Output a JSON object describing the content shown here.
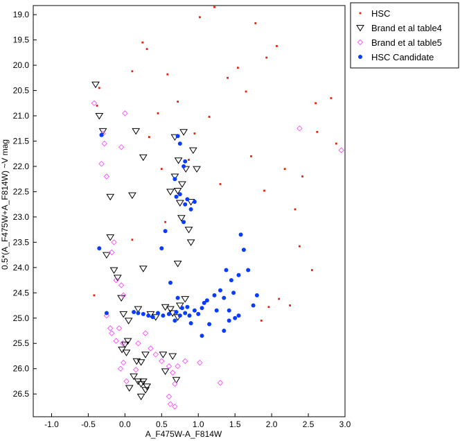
{
  "chart_data": {
    "type": "scatter",
    "title": "",
    "xlabel": "A_F475W-A_F814W",
    "ylabel": "0.5*(A_F475W+A_F814W) ~V mag",
    "xlim": [
      -1.25,
      3.0
    ],
    "ylim": [
      26.95,
      18.82
    ],
    "y_inverted": true,
    "grid": false,
    "legend_position": "top-right, outside plot",
    "xticks": [
      -1.0,
      -0.5,
      0.0,
      0.5,
      1.0,
      1.5,
      2.0,
      2.5,
      3.0
    ],
    "xtick_labels": [
      "-1.0",
      "-0.5",
      "0.0",
      "0.5",
      "1.0",
      "1.5",
      "2.0",
      "2.5",
      "3.0"
    ],
    "yticks": [
      19.0,
      19.5,
      20.0,
      20.5,
      21.0,
      21.5,
      22.0,
      22.5,
      23.0,
      23.5,
      24.0,
      24.5,
      25.0,
      25.5,
      26.0,
      26.5
    ],
    "ytick_labels": [
      "19.0",
      "19.5",
      "20.0",
      "20.5",
      "21.0",
      "21.5",
      "22.0",
      "22.5",
      "23.0",
      "23.5",
      "24.0",
      "24.5",
      "25.0",
      "25.5",
      "26.0",
      "26.5"
    ],
    "series": [
      {
        "name": "HSC",
        "marker": "small-square",
        "color": "#e8200c",
        "values": [
          [
            1.22,
            18.85
          ],
          [
            1.02,
            19.05
          ],
          [
            1.78,
            19.17
          ],
          [
            0.24,
            19.55
          ],
          [
            2.07,
            19.62
          ],
          [
            0.3,
            19.68
          ],
          [
            1.93,
            19.85
          ],
          [
            2.81,
            20.65
          ],
          [
            0.45,
            20.95
          ],
          [
            0.72,
            20.72
          ],
          [
            1.4,
            20.25
          ],
          [
            1.65,
            20.52
          ],
          [
            1.15,
            21.02
          ],
          [
            2.6,
            20.75
          ],
          [
            2.88,
            21.55
          ],
          [
            2.32,
            22.85
          ],
          [
            2.55,
            24.05
          ],
          [
            2.38,
            23.58
          ],
          [
            2.1,
            24.62
          ],
          [
            1.86,
            25.05
          ],
          [
            1.96,
            24.78
          ],
          [
            -0.42,
            24.55
          ],
          [
            0.33,
            21.42
          ],
          [
            0.87,
            21.87
          ],
          [
            -0.38,
            20.8
          ],
          [
            -0.35,
            20.45
          ],
          [
            1.3,
            22.35
          ],
          [
            1.72,
            21.8
          ],
          [
            2.18,
            22.05
          ],
          [
            0.1,
            20.12
          ],
          [
            0.58,
            20.18
          ],
          [
            1.54,
            20.05
          ],
          [
            2.62,
            21.32
          ],
          [
            2.25,
            24.75
          ],
          [
            0.55,
            23.1
          ],
          [
            0.5,
            22.05
          ],
          [
            1.9,
            22.48
          ],
          [
            2.42,
            22.2
          ],
          [
            0.1,
            23.45
          ],
          [
            0.95,
            21.35
          ]
        ]
      },
      {
        "name": "Brand et al table4",
        "marker": "open-triangle-down",
        "color": "#000000",
        "values": [
          [
            -0.4,
            20.38
          ],
          [
            -0.35,
            21.0
          ],
          [
            -0.3,
            21.3
          ],
          [
            0.15,
            21.3
          ],
          [
            0.25,
            21.82
          ],
          [
            -0.2,
            22.6
          ],
          [
            0.1,
            22.57
          ],
          [
            -0.2,
            23.4
          ],
          [
            -0.25,
            23.75
          ],
          [
            -0.15,
            24.05
          ],
          [
            -0.1,
            24.2
          ],
          [
            0.25,
            24.02
          ],
          [
            -0.05,
            24.6
          ],
          [
            -0.02,
            24.92
          ],
          [
            0.05,
            25.05
          ],
          [
            0.18,
            24.82
          ],
          [
            0.62,
            22.5
          ],
          [
            0.72,
            22.48
          ],
          [
            0.78,
            22.35
          ],
          [
            0.68,
            22.2
          ],
          [
            0.75,
            22.72
          ],
          [
            0.9,
            22.7
          ],
          [
            0.83,
            22.05
          ],
          [
            0.73,
            21.88
          ],
          [
            0.68,
            21.42
          ],
          [
            0.8,
            21.32
          ],
          [
            0.93,
            21.68
          ],
          [
            0.98,
            22.05
          ],
          [
            0.77,
            23.02
          ],
          [
            0.87,
            23.25
          ],
          [
            0.9,
            23.5
          ],
          [
            0.72,
            23.92
          ],
          [
            0.55,
            24.78
          ],
          [
            0.62,
            24.82
          ],
          [
            0.75,
            24.75
          ],
          [
            0.82,
            24.62
          ],
          [
            0.65,
            24.9
          ],
          [
            0.72,
            24.98
          ],
          [
            0.42,
            24.98
          ],
          [
            0.35,
            24.92
          ],
          [
            0.04,
            25.45
          ],
          [
            0.0,
            25.52
          ],
          [
            0.02,
            25.68
          ],
          [
            -0.04,
            25.62
          ],
          [
            0.16,
            25.85
          ],
          [
            0.22,
            25.87
          ],
          [
            0.28,
            25.72
          ],
          [
            0.52,
            25.72
          ],
          [
            0.65,
            25.75
          ],
          [
            0.55,
            26.05
          ],
          [
            0.12,
            26.15
          ],
          [
            0.18,
            26.25
          ],
          [
            0.22,
            26.3
          ],
          [
            0.25,
            26.25
          ],
          [
            0.28,
            26.42
          ],
          [
            0.3,
            26.35
          ],
          [
            0.22,
            26.55
          ],
          [
            0.06,
            26.38
          ],
          [
            0.7,
            26.22
          ]
        ]
      },
      {
        "name": "Brand et al table5",
        "marker": "open-diamond",
        "color": "#ff4dff",
        "values": [
          [
            -0.42,
            20.75
          ],
          [
            0.0,
            20.95
          ],
          [
            -0.3,
            21.35
          ],
          [
            -0.28,
            21.55
          ],
          [
            -0.05,
            21.62
          ],
          [
            -0.32,
            21.95
          ],
          [
            -0.25,
            22.2
          ],
          [
            -0.15,
            23.5
          ],
          [
            -0.18,
            23.7
          ],
          [
            -0.12,
            24.25
          ],
          [
            -0.05,
            24.35
          ],
          [
            -0.02,
            24.55
          ],
          [
            -0.25,
            24.95
          ],
          [
            -0.2,
            25.2
          ],
          [
            -0.18,
            25.3
          ],
          [
            -0.08,
            25.2
          ],
          [
            -0.12,
            25.45
          ],
          [
            -0.03,
            25.5
          ],
          [
            -0.02,
            25.88
          ],
          [
            -0.06,
            26.0
          ],
          [
            0.18,
            25.5
          ],
          [
            0.28,
            25.3
          ],
          [
            0.35,
            25.6
          ],
          [
            0.42,
            25.72
          ],
          [
            0.5,
            25.85
          ],
          [
            0.6,
            25.95
          ],
          [
            0.65,
            26.08
          ],
          [
            0.72,
            25.95
          ],
          [
            0.68,
            26.3
          ],
          [
            0.6,
            26.55
          ],
          [
            0.62,
            26.7
          ],
          [
            0.68,
            26.75
          ],
          [
            0.82,
            25.85
          ],
          [
            1.02,
            25.88
          ],
          [
            1.3,
            26.28
          ],
          [
            0.15,
            26.02
          ],
          [
            2.38,
            21.25
          ],
          [
            2.95,
            21.68
          ],
          [
            0.02,
            26.25
          ]
        ]
      },
      {
        "name": "HSC Candidate",
        "marker": "filled-circle",
        "color": "#0a3cff",
        "values": [
          [
            -0.32,
            21.38
          ],
          [
            -0.35,
            23.62
          ],
          [
            -0.25,
            24.9
          ],
          [
            0.5,
            23.62
          ],
          [
            0.68,
            22.25
          ],
          [
            0.72,
            21.4
          ],
          [
            0.75,
            21.55
          ],
          [
            0.8,
            22.0
          ],
          [
            0.82,
            21.9
          ],
          [
            0.7,
            22.6
          ],
          [
            0.75,
            22.55
          ],
          [
            0.85,
            22.65
          ],
          [
            0.82,
            22.75
          ],
          [
            0.9,
            22.85
          ],
          [
            0.95,
            22.7
          ],
          [
            0.8,
            23.1
          ],
          [
            0.55,
            23.28
          ],
          [
            0.62,
            24.3
          ],
          [
            0.72,
            24.6
          ],
          [
            0.78,
            24.8
          ],
          [
            0.82,
            24.9
          ],
          [
            0.88,
            24.95
          ],
          [
            0.7,
            24.88
          ],
          [
            0.6,
            24.92
          ],
          [
            0.52,
            24.95
          ],
          [
            0.45,
            24.9
          ],
          [
            0.38,
            24.98
          ],
          [
            0.32,
            24.95
          ],
          [
            0.25,
            24.92
          ],
          [
            0.18,
            24.9
          ],
          [
            0.12,
            24.88
          ],
          [
            0.68,
            25.05
          ],
          [
            0.9,
            25.1
          ],
          [
            1.05,
            24.8
          ],
          [
            1.12,
            24.65
          ],
          [
            1.22,
            24.55
          ],
          [
            1.3,
            24.45
          ],
          [
            1.35,
            24.6
          ],
          [
            1.42,
            24.85
          ],
          [
            1.48,
            24.5
          ],
          [
            1.05,
            25.35
          ],
          [
            1.15,
            25.12
          ],
          [
            1.5,
            25.0
          ],
          [
            1.55,
            24.15
          ],
          [
            1.62,
            23.65
          ],
          [
            1.68,
            24.05
          ],
          [
            1.58,
            23.35
          ],
          [
            1.75,
            24.75
          ],
          [
            1.8,
            24.55
          ],
          [
            1.38,
            24.05
          ],
          [
            1.45,
            24.25
          ],
          [
            1.25,
            24.85
          ],
          [
            1.35,
            25.25
          ],
          [
            1.42,
            25.05
          ],
          [
            1.55,
            24.95
          ],
          [
            1.0,
            24.92
          ],
          [
            1.08,
            24.7
          ],
          [
            0.95,
            24.85
          ],
          [
            0.85,
            24.78
          ],
          [
            0.75,
            24.95
          ]
        ]
      }
    ]
  },
  "colors": {
    "hsc": "#e8200c",
    "brand4": "#000000",
    "brand5": "#ff4dff",
    "candidate": "#0a3cff",
    "axis": "#000000"
  }
}
